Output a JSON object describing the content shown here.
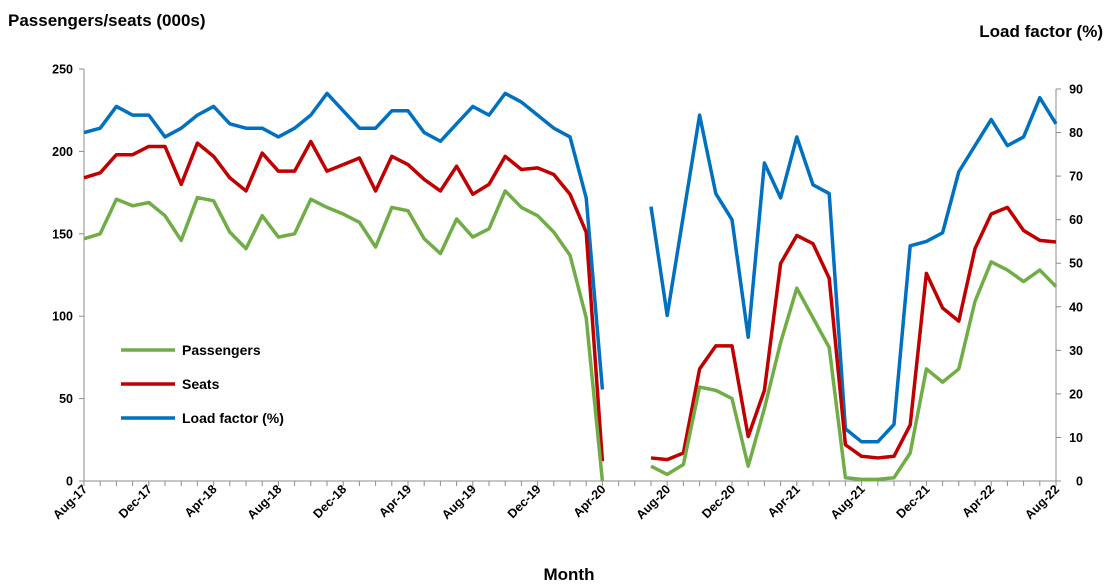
{
  "chart_data": {
    "type": "line",
    "ylabel_left": "Passengers/seats (000s)",
    "ylabel_right": "Load factor (%)",
    "xlabel": "Month",
    "ylim_left": [
      0,
      250
    ],
    "yticks_left": [
      0,
      50,
      100,
      150,
      200,
      250
    ],
    "ylim_right": [
      0,
      90
    ],
    "yticks_right": [
      0,
      10,
      20,
      30,
      40,
      50,
      60,
      70,
      80,
      90
    ],
    "x_tick_labels": [
      "Aug-17",
      "Dec-17",
      "Apr-18",
      "Aug-18",
      "Dec-18",
      "Apr-19",
      "Aug-19",
      "Dec-19",
      "Apr-20",
      "Aug-20",
      "Dec-20",
      "Apr-21",
      "Aug-21",
      "Dec-21",
      "Apr-22",
      "Aug-22"
    ],
    "months": [
      "Aug-17",
      "Sep-17",
      "Oct-17",
      "Nov-17",
      "Dec-17",
      "Jan-18",
      "Feb-18",
      "Mar-18",
      "Apr-18",
      "May-18",
      "Jun-18",
      "Jul-18",
      "Aug-18",
      "Sep-18",
      "Oct-18",
      "Nov-18",
      "Dec-18",
      "Jan-19",
      "Feb-19",
      "Mar-19",
      "Apr-19",
      "May-19",
      "Jun-19",
      "Jul-19",
      "Aug-19",
      "Sep-19",
      "Oct-19",
      "Nov-19",
      "Dec-19",
      "Jan-20",
      "Feb-20",
      "Mar-20",
      "Apr-20",
      "May-20",
      "Jun-20",
      "Jul-20",
      "Aug-20",
      "Sep-20",
      "Oct-20",
      "Nov-20",
      "Dec-20",
      "Jan-21",
      "Feb-21",
      "Mar-21",
      "Apr-21",
      "May-21",
      "Jun-21",
      "Jul-21",
      "Aug-21",
      "Sep-21",
      "Oct-21",
      "Nov-21",
      "Dec-21",
      "Jan-22",
      "Feb-22",
      "Mar-22",
      "Apr-22",
      "May-22",
      "Jun-22",
      "Jul-22",
      "Aug-22"
    ],
    "grid": false,
    "legend_position": "center-left",
    "series": [
      {
        "name": "Passengers",
        "axis": "left",
        "color": "#70ad47",
        "values": [
          147,
          150,
          171,
          167,
          169,
          161,
          146,
          172,
          170,
          151,
          141,
          161,
          148,
          150,
          171,
          166,
          162,
          157,
          142,
          166,
          164,
          147,
          138,
          159,
          148,
          153,
          176,
          166,
          161,
          151,
          137,
          99,
          0,
          null,
          null,
          9,
          4,
          10,
          57,
          55,
          50,
          9,
          44,
          84,
          117,
          99,
          81,
          2,
          1,
          1,
          2,
          17,
          68,
          60,
          68,
          109,
          133,
          128,
          121,
          128,
          118
        ]
      },
      {
        "name": "Seats",
        "axis": "left",
        "color": "#c00000",
        "values": [
          184,
          187,
          198,
          198,
          203,
          203,
          180,
          205,
          197,
          184,
          176,
          199,
          188,
          188,
          206,
          188,
          192,
          196,
          176,
          197,
          192,
          183,
          176,
          191,
          174,
          180,
          197,
          189,
          190,
          186,
          174,
          151,
          12,
          null,
          null,
          14,
          13,
          17,
          68,
          82,
          82,
          27,
          55,
          132,
          149,
          144,
          123,
          22,
          15,
          14,
          15,
          34,
          126,
          105,
          97,
          141,
          162,
          166,
          152,
          146,
          145
        ]
      },
      {
        "name": "Load factor (%)",
        "axis": "right",
        "color": "#0070c0",
        "values": [
          80,
          81,
          86,
          84,
          84,
          79,
          81,
          84,
          86,
          82,
          81,
          81,
          79,
          81,
          84,
          89,
          85,
          81,
          81,
          85,
          85,
          80,
          78,
          82,
          86,
          84,
          89,
          87,
          84,
          81,
          79,
          65,
          21,
          null,
          null,
          63,
          38,
          61,
          84,
          66,
          60,
          33,
          73,
          65,
          79,
          68,
          66,
          12,
          9,
          9,
          13,
          54,
          55,
          57,
          71,
          77,
          83,
          77,
          79,
          88,
          82
        ]
      }
    ]
  }
}
